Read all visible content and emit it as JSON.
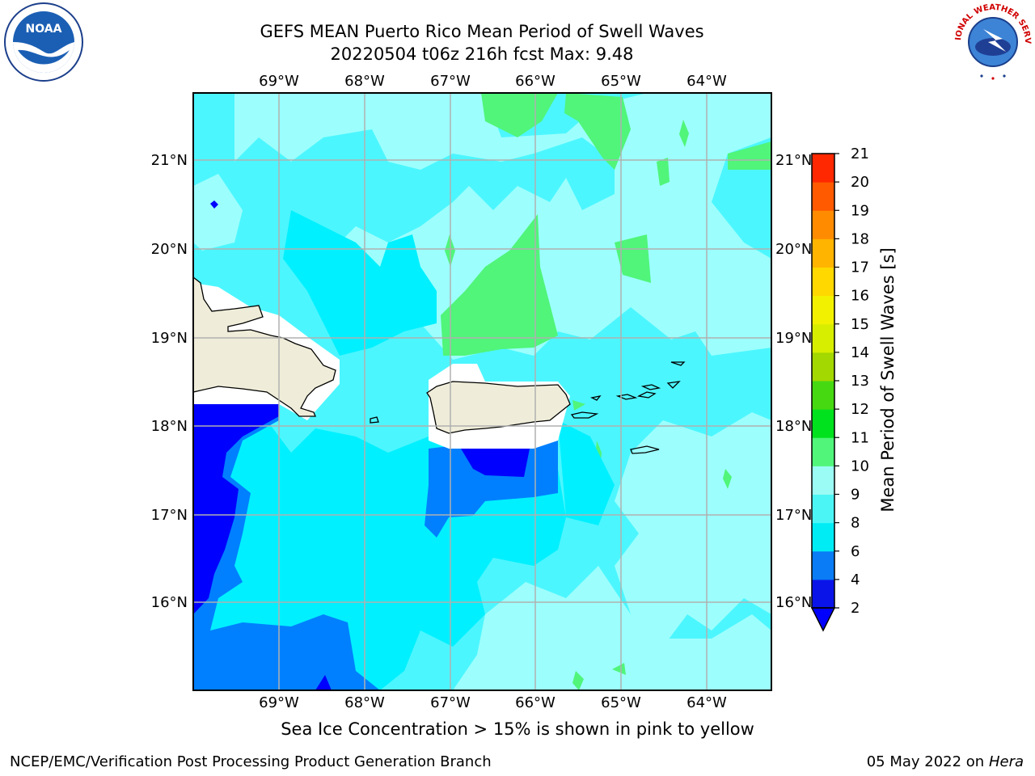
{
  "header": {
    "title_line1": "GEFS MEAN Puerto Rico Mean Period of Swell Waves",
    "title_line2": "20220504 t06z 216h fcst   Max: 9.48"
  },
  "axes": {
    "lon_labels": [
      "69°W",
      "68°W",
      "67°W",
      "66°W",
      "65°W",
      "64°W"
    ],
    "lat_labels": [
      "21°N",
      "20°N",
      "19°N",
      "18°N",
      "17°N",
      "16°N"
    ]
  },
  "colorbar": {
    "label": "Mean Period of Swell Waves [s]",
    "levels": [
      "2",
      "4",
      "6",
      "8",
      "9",
      "10",
      "11",
      "12",
      "13",
      "14",
      "15",
      "16",
      "17",
      "18",
      "19",
      "20",
      "21"
    ],
    "colors": [
      "#0a14e8",
      "#0a7cf5",
      "#00ecf5",
      "#4cf5f5",
      "#9bfcf5",
      "#50f57a",
      "#00e21e",
      "#46d912",
      "#a3d800",
      "#d7ee00",
      "#f2f200",
      "#ffd800",
      "#ffb400",
      "#ff8c00",
      "#ff5a00",
      "#ff2800"
    ],
    "under_color": "#0000ff"
  },
  "legend_note": "Sea Ice Concentration > 15% is shown in pink to yellow",
  "footer": {
    "left": "NCEP/EMC/Verification Post Processing Product Generation Branch",
    "date": "05 May 2022 on",
    "machine": "Hera"
  },
  "logos": {
    "noaa": "NOAA",
    "nws": "NATIONAL WEATHER SERVICE"
  },
  "field_colors": {
    "land": "#efedd9",
    "nodata": "#ffffff",
    "c2": "#0000ff",
    "c4": "#0080ff",
    "c6": "#00f0ff",
    "c8": "#4cf6ff",
    "c9": "#9cfffd",
    "c10": "#50f57a"
  }
}
